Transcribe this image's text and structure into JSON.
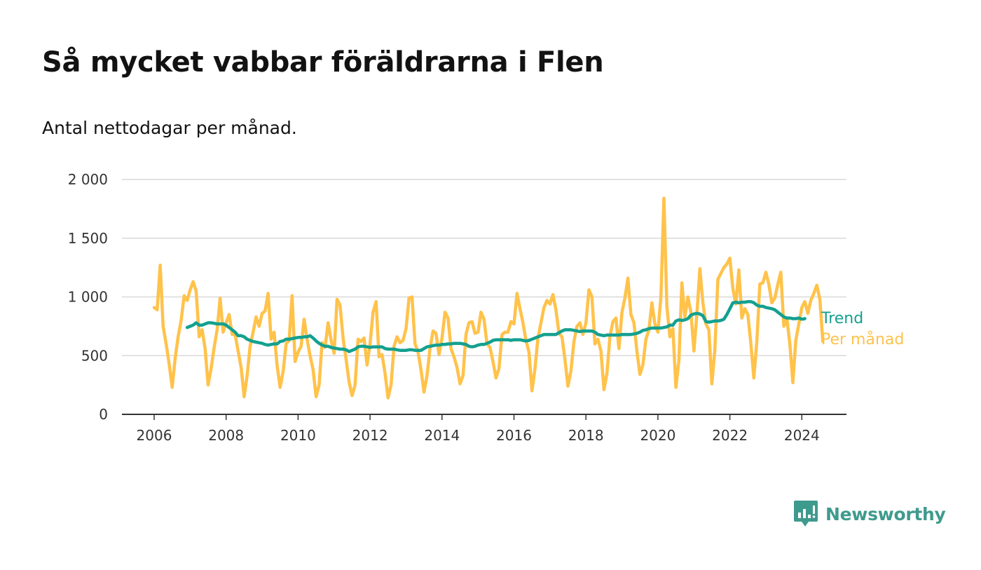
{
  "title": "Så mycket vabbar föräldrarna i Flen",
  "subtitle": "Antal nettodagar per månad.",
  "brand": {
    "name": "Newsworthy",
    "icon": "newsworthy-logo-icon",
    "color": "#3f9a8e"
  },
  "chart_data": {
    "type": "line",
    "title": "Så mycket vabbar föräldrarna i Flen",
    "subtitle": "Antal nettodagar per månad.",
    "xlabel": "",
    "ylabel": "",
    "xlim": [
      2006,
      2024.5
    ],
    "ylim": [
      0,
      2000
    ],
    "x_ticks": [
      2006,
      2008,
      2010,
      2012,
      2014,
      2016,
      2018,
      2020,
      2022,
      2024
    ],
    "x_tick_labels": [
      "2006",
      "2008",
      "2010",
      "2012",
      "2014",
      "2016",
      "2018",
      "2020",
      "2022",
      "2024"
    ],
    "y_ticks": [
      0,
      500,
      1000,
      1500,
      2000
    ],
    "y_tick_labels": [
      "0",
      "500",
      "1 000",
      "1 500",
      "2 000"
    ],
    "grid": "horizontal",
    "legend": "end-of-line labels (right)",
    "series": [
      {
        "name": "Per månad",
        "color": "#ffc24a",
        "x_start": 2006,
        "frequency": "monthly",
        "values": [
          910,
          890,
          1270,
          750,
          600,
          430,
          230,
          480,
          660,
          800,
          1010,
          970,
          1060,
          1130,
          1050,
          660,
          720,
          560,
          250,
          390,
          570,
          720,
          990,
          700,
          780,
          850,
          680,
          680,
          540,
          400,
          150,
          330,
          580,
          700,
          830,
          750,
          860,
          880,
          1030,
          640,
          700,
          420,
          230,
          360,
          600,
          630,
          1010,
          450,
          530,
          580,
          810,
          640,
          500,
          380,
          150,
          250,
          610,
          570,
          780,
          630,
          520,
          980,
          930,
          650,
          470,
          280,
          160,
          250,
          640,
          620,
          650,
          420,
          600,
          870,
          960,
          490,
          510,
          350,
          140,
          250,
          580,
          660,
          610,
          630,
          730,
          990,
          1000,
          600,
          530,
          380,
          190,
          330,
          560,
          710,
          690,
          510,
          650,
          870,
          820,
          560,
          490,
          400,
          260,
          330,
          680,
          780,
          790,
          690,
          700,
          870,
          810,
          600,
          570,
          450,
          310,
          390,
          680,
          700,
          700,
          790,
          770,
          1030,
          900,
          780,
          630,
          530,
          200,
          390,
          650,
          780,
          910,
          970,
          940,
          1020,
          890,
          690,
          660,
          470,
          240,
          370,
          620,
          750,
          780,
          680,
          780,
          1060,
          1000,
          600,
          640,
          540,
          210,
          350,
          660,
          790,
          820,
          560,
          870,
          990,
          1160,
          850,
          780,
          540,
          340,
          420,
          640,
          720,
          950,
          770,
          700,
          1000,
          1840,
          920,
          660,
          730,
          230,
          460,
          1120,
          830,
          1000,
          870,
          540,
          850,
          1240,
          950,
          770,
          720,
          260,
          550,
          1150,
          1200,
          1250,
          1280,
          1330,
          1070,
          940,
          1230,
          820,
          900,
          850,
          600,
          310,
          620,
          1110,
          1120,
          1210,
          1110,
          950,
          990,
          1110,
          1210,
          750,
          820,
          600,
          270,
          630,
          770,
          910,
          960,
          860,
          970,
          1030,
          1100,
          980,
          620
        ]
      },
      {
        "name": "Trend",
        "color": "#14a08f",
        "x_start": 2006.917,
        "frequency": "monthly",
        "values": [
          740,
          750,
          760,
          780,
          760,
          760,
          770,
          780,
          780,
          775,
          770,
          770,
          770,
          760,
          740,
          720,
          700,
          670,
          670,
          660,
          640,
          630,
          620,
          615,
          610,
          605,
          595,
          590,
          595,
          600,
          600,
          620,
          625,
          640,
          640,
          645,
          650,
          655,
          655,
          660,
          660,
          670,
          650,
          625,
          605,
          590,
          580,
          580,
          570,
          565,
          560,
          555,
          555,
          550,
          535,
          545,
          555,
          575,
          580,
          580,
          575,
          570,
          575,
          575,
          575,
          575,
          560,
          555,
          555,
          555,
          550,
          545,
          545,
          545,
          550,
          550,
          545,
          545,
          545,
          560,
          575,
          580,
          585,
          590,
          590,
          595,
          595,
          600,
          600,
          605,
          605,
          605,
          600,
          595,
          580,
          575,
          580,
          590,
          595,
          595,
          605,
          615,
          630,
          635,
          635,
          635,
          635,
          635,
          630,
          635,
          635,
          635,
          630,
          625,
          630,
          640,
          650,
          660,
          670,
          680,
          680,
          680,
          680,
          680,
          695,
          710,
          720,
          720,
          720,
          715,
          710,
          705,
          710,
          710,
          710,
          710,
          700,
          680,
          675,
          670,
          675,
          675,
          675,
          675,
          675,
          680,
          680,
          680,
          680,
          685,
          690,
          700,
          715,
          720,
          730,
          735,
          735,
          735,
          735,
          740,
          745,
          760,
          760,
          795,
          805,
          800,
          805,
          815,
          845,
          855,
          860,
          855,
          840,
          790,
          785,
          790,
          795,
          795,
          800,
          810,
          850,
          900,
          950,
          955,
          950,
          955,
          955,
          960,
          960,
          950,
          930,
          920,
          920,
          910,
          905,
          900,
          890,
          870,
          850,
          830,
          820,
          820,
          815,
          815,
          820,
          810,
          815
        ]
      }
    ]
  }
}
